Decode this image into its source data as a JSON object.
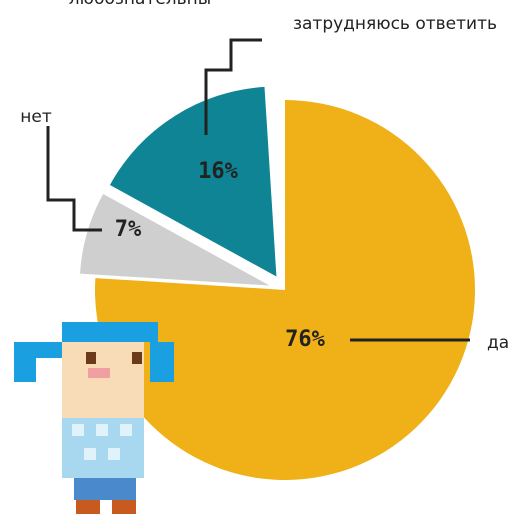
{
  "chart_data": {
    "type": "pie",
    "title": "любознательны",
    "categories": [
      "да",
      "нет",
      "затрудняюсь ответить"
    ],
    "values": [
      76,
      7,
      16
    ],
    "value_labels": [
      "76%",
      "7%",
      "16%"
    ],
    "colors": [
      "#f0b018",
      "#cfcfcf",
      "#0e8494"
    ]
  }
}
